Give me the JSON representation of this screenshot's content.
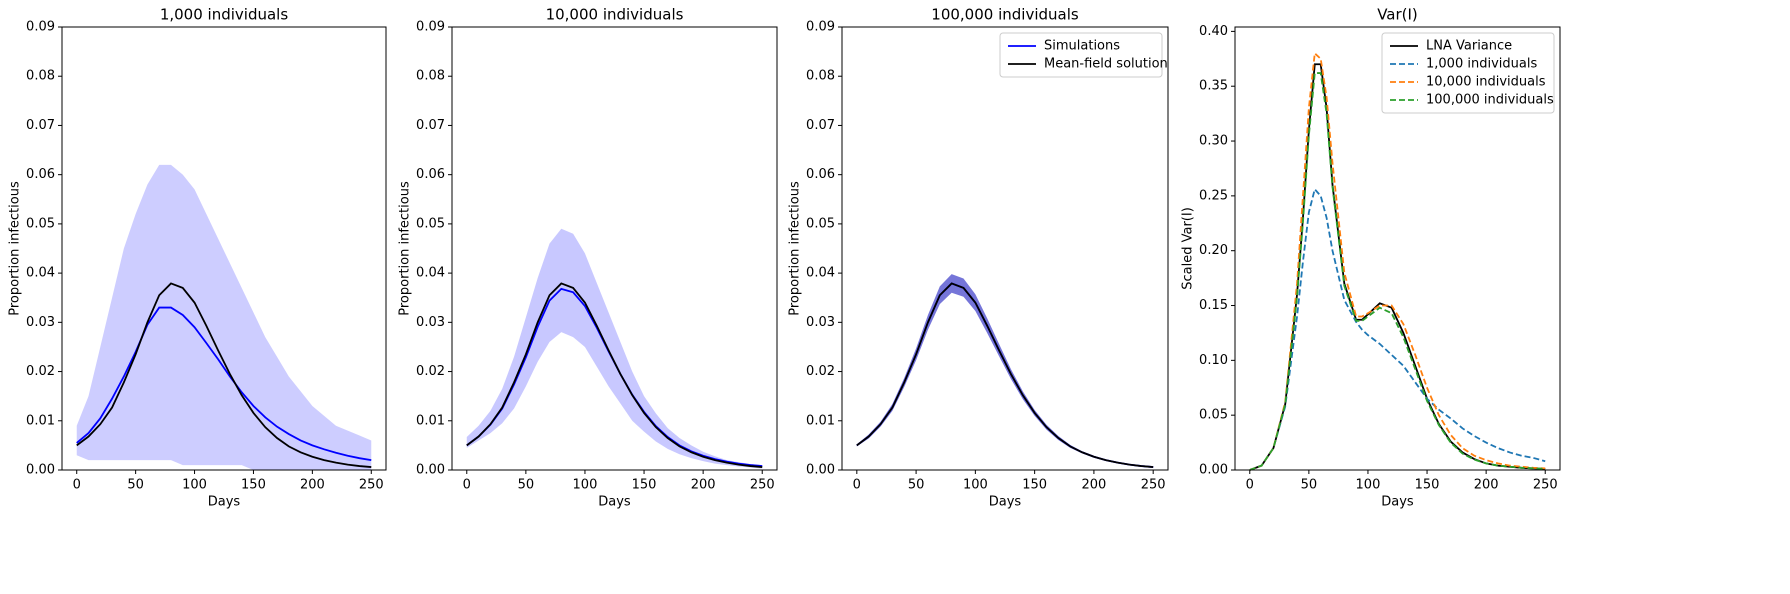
{
  "chart_data": [
    {
      "type": "line",
      "title": "1,000 individuals",
      "xlabel": "Days",
      "ylabel": "Proportion infectious",
      "x": [
        0,
        10,
        20,
        30,
        40,
        50,
        60,
        70,
        80,
        90,
        100,
        110,
        120,
        130,
        140,
        150,
        160,
        170,
        180,
        190,
        200,
        210,
        220,
        230,
        240,
        250
      ],
      "xlim": [
        -12.5,
        262.5
      ],
      "xticks": [
        0,
        50,
        100,
        150,
        200,
        250
      ],
      "ylim": [
        0,
        0.09
      ],
      "yticks": [
        {
          "value": 0,
          "label": "0.00"
        },
        {
          "value": 0.01,
          "label": "0.01"
        },
        {
          "value": 0.02,
          "label": "0.02"
        },
        {
          "value": 0.03,
          "label": "0.03"
        },
        {
          "value": 0.04,
          "label": "0.04"
        },
        {
          "value": 0.05,
          "label": "0.05"
        },
        {
          "value": 0.06,
          "label": "0.06"
        },
        {
          "value": 0.07,
          "label": "0.07"
        },
        {
          "value": 0.08,
          "label": "0.08"
        },
        {
          "value": 0.09,
          "label": "0.09"
        }
      ],
      "series": [
        {
          "color": "#0000ff",
          "band_color": "#b8b8ff",
          "values": [
            0.0055,
            0.0075,
            0.0105,
            0.0145,
            0.019,
            0.024,
            0.0295,
            0.033,
            0.033,
            0.0315,
            0.029,
            0.0258,
            0.0225,
            0.019,
            0.0158,
            0.013,
            0.0107,
            0.0088,
            0.0073,
            0.006,
            0.005,
            0.0042,
            0.0035,
            0.0029,
            0.0024,
            0.002
          ],
          "band_low": [
            0.003,
            0.002,
            0.002,
            0.002,
            0.002,
            0.002,
            0.002,
            0.002,
            0.002,
            0.001,
            0.001,
            0.001,
            0.001,
            0.001,
            0.001,
            0,
            0,
            0,
            0,
            0,
            0,
            0,
            0,
            0,
            0,
            0
          ],
          "band_high": [
            0.009,
            0.015,
            0.025,
            0.035,
            0.045,
            0.052,
            0.058,
            0.062,
            0.062,
            0.06,
            0.057,
            0.052,
            0.047,
            0.042,
            0.037,
            0.032,
            0.027,
            0.023,
            0.019,
            0.016,
            0.013,
            0.011,
            0.009,
            0.008,
            0.007,
            0.006
          ]
        },
        {
          "color": "#000000",
          "values": [
            0.005,
            0.0068,
            0.0093,
            0.0127,
            0.0178,
            0.0235,
            0.03,
            0.0355,
            0.0379,
            0.037,
            0.034,
            0.0293,
            0.0243,
            0.0195,
            0.0152,
            0.0116,
            0.0087,
            0.0065,
            0.0048,
            0.0036,
            0.0027,
            0.002,
            0.0015,
            0.0011,
            0.0008,
            0.0006
          ]
        }
      ]
    },
    {
      "type": "line",
      "title": "10,000 individuals",
      "xlabel": "Days",
      "ylabel": "Proportion infectious",
      "x": [
        0,
        10,
        20,
        30,
        40,
        50,
        60,
        70,
        80,
        90,
        100,
        110,
        120,
        130,
        140,
        150,
        160,
        170,
        180,
        190,
        200,
        210,
        220,
        230,
        240,
        250
      ],
      "xlim": [
        -12.5,
        262.5
      ],
      "xticks": [
        0,
        50,
        100,
        150,
        200,
        250
      ],
      "ylim": [
        0,
        0.09
      ],
      "yticks": [
        {
          "value": 0,
          "label": "0.00"
        },
        {
          "value": 0.01,
          "label": "0.01"
        },
        {
          "value": 0.02,
          "label": "0.02"
        },
        {
          "value": 0.03,
          "label": "0.03"
        },
        {
          "value": 0.04,
          "label": "0.04"
        },
        {
          "value": 0.05,
          "label": "0.05"
        },
        {
          "value": 0.06,
          "label": "0.06"
        },
        {
          "value": 0.07,
          "label": "0.07"
        },
        {
          "value": 0.08,
          "label": "0.08"
        },
        {
          "value": 0.09,
          "label": "0.09"
        }
      ],
      "series": [
        {
          "color": "#0000ff",
          "band_color": "#b0b0ff",
          "values": [
            0.005,
            0.0068,
            0.0092,
            0.0125,
            0.0174,
            0.0229,
            0.0291,
            0.0344,
            0.0368,
            0.0361,
            0.0333,
            0.0289,
            0.0241,
            0.0195,
            0.0153,
            0.0118,
            0.0089,
            0.0067,
            0.005,
            0.0038,
            0.0029,
            0.0022,
            0.0017,
            0.0013,
            0.001,
            0.0008
          ],
          "band_low": [
            0.0045,
            0.006,
            0.0075,
            0.0095,
            0.0125,
            0.017,
            0.022,
            0.026,
            0.028,
            0.027,
            0.025,
            0.021,
            0.017,
            0.0135,
            0.01,
            0.0078,
            0.0058,
            0.0043,
            0.0032,
            0.0024,
            0.0018,
            0.0013,
            0.001,
            0.0007,
            0.0005,
            0.0003
          ],
          "band_high": [
            0.0067,
            0.009,
            0.012,
            0.0165,
            0.023,
            0.031,
            0.039,
            0.046,
            0.049,
            0.048,
            0.044,
            0.038,
            0.032,
            0.026,
            0.02,
            0.015,
            0.0115,
            0.0085,
            0.0065,
            0.005,
            0.0037,
            0.0028,
            0.002,
            0.0016,
            0.0012,
            0.001
          ]
        },
        {
          "color": "#000000",
          "values": [
            0.005,
            0.0068,
            0.0093,
            0.0127,
            0.0178,
            0.0235,
            0.03,
            0.0355,
            0.0379,
            0.037,
            0.034,
            0.0293,
            0.0243,
            0.0195,
            0.0152,
            0.0116,
            0.0087,
            0.0065,
            0.0048,
            0.0036,
            0.0027,
            0.002,
            0.0015,
            0.0011,
            0.0008,
            0.0006
          ]
        }
      ]
    },
    {
      "type": "line",
      "title": "100,000 individuals",
      "xlabel": "Days",
      "ylabel": "Proportion infectious",
      "x": [
        0,
        10,
        20,
        30,
        40,
        50,
        60,
        70,
        80,
        90,
        100,
        110,
        120,
        130,
        140,
        150,
        160,
        170,
        180,
        190,
        200,
        210,
        220,
        230,
        240,
        250
      ],
      "xlim": [
        -12.5,
        262.5
      ],
      "xticks": [
        0,
        50,
        100,
        150,
        200,
        250
      ],
      "ylim": [
        0,
        0.09
      ],
      "yticks": [
        {
          "value": 0,
          "label": "0.00"
        },
        {
          "value": 0.01,
          "label": "0.01"
        },
        {
          "value": 0.02,
          "label": "0.02"
        },
        {
          "value": 0.03,
          "label": "0.03"
        },
        {
          "value": 0.04,
          "label": "0.04"
        },
        {
          "value": 0.05,
          "label": "0.05"
        },
        {
          "value": 0.06,
          "label": "0.06"
        },
        {
          "value": 0.07,
          "label": "0.07"
        },
        {
          "value": 0.08,
          "label": "0.08"
        },
        {
          "value": 0.09,
          "label": "0.09"
        }
      ],
      "legend": "upper right",
      "series": [
        {
          "name": "Simulations",
          "color": "#0000ff",
          "band_color": "#3a3ac8",
          "values": [
            0.005,
            0.0068,
            0.0093,
            0.0127,
            0.0178,
            0.0235,
            0.03,
            0.0355,
            0.0379,
            0.037,
            0.034,
            0.0293,
            0.0243,
            0.0195,
            0.0152,
            0.0116,
            0.0087,
            0.0065,
            0.0048,
            0.0036,
            0.0027,
            0.002,
            0.0015,
            0.0011,
            0.0008,
            0.0006
          ],
          "band_low": [
            0.0048,
            0.0064,
            0.0088,
            0.012,
            0.0169,
            0.0223,
            0.0285,
            0.0337,
            0.036,
            0.0352,
            0.0323,
            0.0278,
            0.0231,
            0.0185,
            0.0144,
            0.011,
            0.0082,
            0.0061,
            0.0045,
            0.0034,
            0.0025,
            0.0019,
            0.0014,
            0.001,
            0.0007,
            0.0005
          ],
          "band_high": [
            0.0052,
            0.0072,
            0.0098,
            0.0134,
            0.0187,
            0.0247,
            0.0315,
            0.0373,
            0.0398,
            0.0389,
            0.0357,
            0.0308,
            0.0256,
            0.0205,
            0.016,
            0.0122,
            0.0092,
            0.0069,
            0.0051,
            0.0038,
            0.0029,
            0.0021,
            0.0016,
            0.0012,
            0.0009,
            0.0007
          ]
        },
        {
          "name": "Mean-field solution",
          "color": "#000000",
          "values": [
            0.005,
            0.0068,
            0.0093,
            0.0127,
            0.0178,
            0.0235,
            0.03,
            0.0355,
            0.0379,
            0.037,
            0.034,
            0.0293,
            0.0243,
            0.0195,
            0.0152,
            0.0116,
            0.0087,
            0.0065,
            0.0048,
            0.0036,
            0.0027,
            0.002,
            0.0015,
            0.0011,
            0.0008,
            0.0006
          ]
        }
      ]
    },
    {
      "type": "line",
      "title": "Var(I)",
      "xlabel": "Days",
      "ylabel": "Scaled Var(I)",
      "x": [
        0,
        10,
        20,
        30,
        40,
        45,
        50,
        55,
        60,
        65,
        70,
        80,
        90,
        95,
        100,
        110,
        120,
        130,
        140,
        150,
        160,
        170,
        180,
        190,
        200,
        210,
        220,
        230,
        240,
        250
      ],
      "xlim": [
        -12.5,
        262.5
      ],
      "xticks": [
        0,
        50,
        100,
        150,
        200,
        250
      ],
      "ylim": [
        0,
        0.404
      ],
      "yticks": [
        {
          "value": 0,
          "label": "0.00"
        },
        {
          "value": 0.05,
          "label": "0.05"
        },
        {
          "value": 0.1,
          "label": "0.10"
        },
        {
          "value": 0.15,
          "label": "0.15"
        },
        {
          "value": 0.2,
          "label": "0.20"
        },
        {
          "value": 0.25,
          "label": "0.25"
        },
        {
          "value": 0.3,
          "label": "0.30"
        },
        {
          "value": 0.35,
          "label": "0.35"
        },
        {
          "value": 0.4,
          "label": "0.40"
        }
      ],
      "legend": "upper right",
      "series": [
        {
          "name": "LNA Variance",
          "color": "#000000",
          "values": [
            0,
            0.004,
            0.02,
            0.06,
            0.16,
            0.23,
            0.31,
            0.37,
            0.37,
            0.33,
            0.26,
            0.17,
            0.137,
            0.137,
            0.142,
            0.152,
            0.148,
            0.125,
            0.095,
            0.065,
            0.042,
            0.026,
            0.016,
            0.01,
            0.006,
            0.004,
            0.003,
            0.002,
            0.0015,
            0.001
          ]
        },
        {
          "name": "1,000 individuals",
          "color": "#1f77b4",
          "dashed": true,
          "values": [
            0,
            0.004,
            0.02,
            0.058,
            0.14,
            0.19,
            0.235,
            0.256,
            0.25,
            0.23,
            0.2,
            0.155,
            0.135,
            0.128,
            0.123,
            0.115,
            0.105,
            0.095,
            0.08,
            0.065,
            0.055,
            0.047,
            0.038,
            0.031,
            0.025,
            0.02,
            0.016,
            0.013,
            0.011,
            0.008
          ]
        },
        {
          "name": "10,000 individuals",
          "color": "#ff7f0e",
          "dashed": true,
          "values": [
            0,
            0.004,
            0.02,
            0.062,
            0.17,
            0.25,
            0.33,
            0.38,
            0.375,
            0.34,
            0.28,
            0.18,
            0.14,
            0.14,
            0.143,
            0.15,
            0.15,
            0.133,
            0.105,
            0.075,
            0.05,
            0.032,
            0.02,
            0.013,
            0.009,
            0.006,
            0.004,
            0.003,
            0.002,
            0.0015
          ]
        },
        {
          "name": "100,000 individuals",
          "color": "#2ca02c",
          "dashed": true,
          "values": [
            0,
            0.004,
            0.02,
            0.06,
            0.158,
            0.226,
            0.305,
            0.362,
            0.362,
            0.325,
            0.258,
            0.168,
            0.136,
            0.136,
            0.14,
            0.148,
            0.143,
            0.121,
            0.092,
            0.063,
            0.041,
            0.025,
            0.015,
            0.0095,
            0.006,
            0.004,
            0.003,
            0.002,
            0.0015,
            0.001
          ]
        }
      ]
    }
  ]
}
